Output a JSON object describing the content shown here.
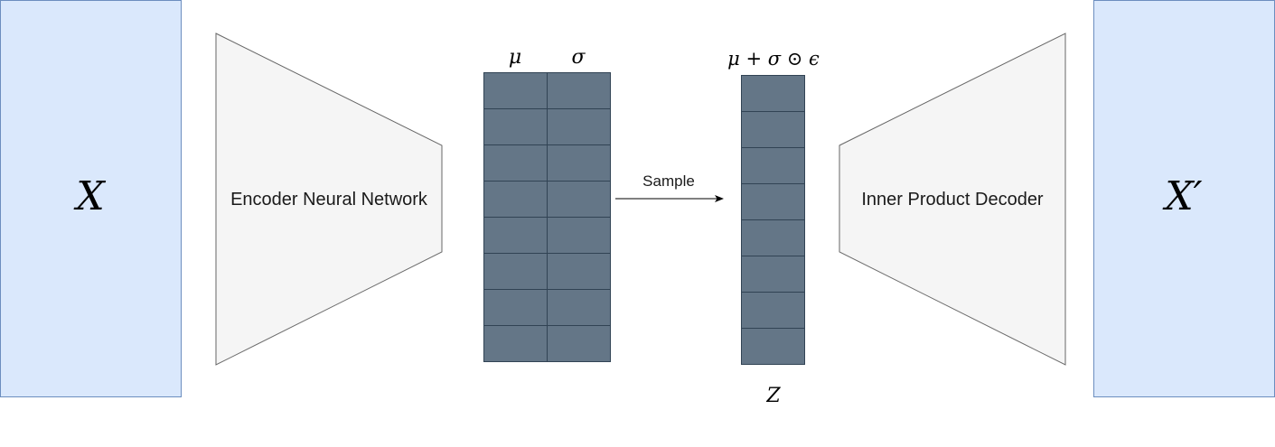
{
  "input": {
    "label": "X",
    "fill": "#dae8fc",
    "stroke": "#6c8ebf"
  },
  "output": {
    "label": "X′",
    "fill": "#dae8fc",
    "stroke": "#6c8ebf"
  },
  "encoder": {
    "label": "Encoder Neural Network",
    "fill": "#f5f5f5",
    "stroke": "#666666"
  },
  "decoder": {
    "label": "Inner Product Decoder",
    "fill": "#f5f5f5",
    "stroke": "#666666"
  },
  "latent_params": {
    "mu_label": "μ",
    "sigma_label": "σ",
    "rows": 8,
    "fill": "#647687",
    "stroke": "#314354"
  },
  "sample_arrow": {
    "label": "Sample"
  },
  "latent": {
    "formula": "μ + σ ⊙ ϵ",
    "label": "Z",
    "rows": 8,
    "fill": "#647687",
    "stroke": "#314354"
  }
}
